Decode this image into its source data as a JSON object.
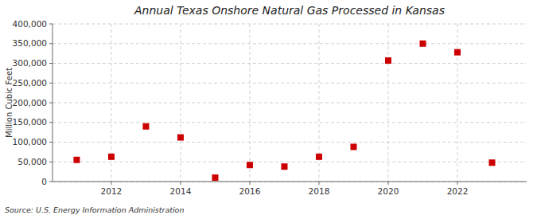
{
  "chart_data": {
    "type": "scatter",
    "title": "Annual Texas Onshore Natural Gas Processed in Kansas",
    "ylabel": "Million Cubic Feet",
    "annotations": [
      "Source: U.S. Energy Information Administration"
    ],
    "x": [
      2011,
      2012,
      2013,
      2014,
      2015,
      2016,
      2017,
      2018,
      2019,
      2020,
      2021,
      2022,
      2023
    ],
    "values": [
      55000,
      63000,
      140000,
      112000,
      10000,
      42000,
      38000,
      63000,
      88000,
      307000,
      350000,
      328000,
      48000
    ],
    "color": "#cc0000",
    "marker": "square",
    "xlim": [
      2010.3,
      2024.0
    ],
    "xticks": [
      2012,
      2014,
      2016,
      2018,
      2020,
      2022
    ],
    "ylim": [
      0,
      400000
    ],
    "yticks": [
      0,
      {
        "value": 50000,
        "label": "50,000"
      },
      {
        "value": 100000,
        "label": "100,000"
      },
      {
        "value": 150000,
        "label": "150,000"
      },
      {
        "value": 200000,
        "label": "200,000"
      },
      {
        "value": 250000,
        "label": "250,000"
      },
      {
        "value": 300000,
        "label": "300,000"
      },
      {
        "value": 350000,
        "label": "350,000"
      },
      {
        "value": 400000,
        "label": "400,000"
      }
    ],
    "grid": true
  }
}
